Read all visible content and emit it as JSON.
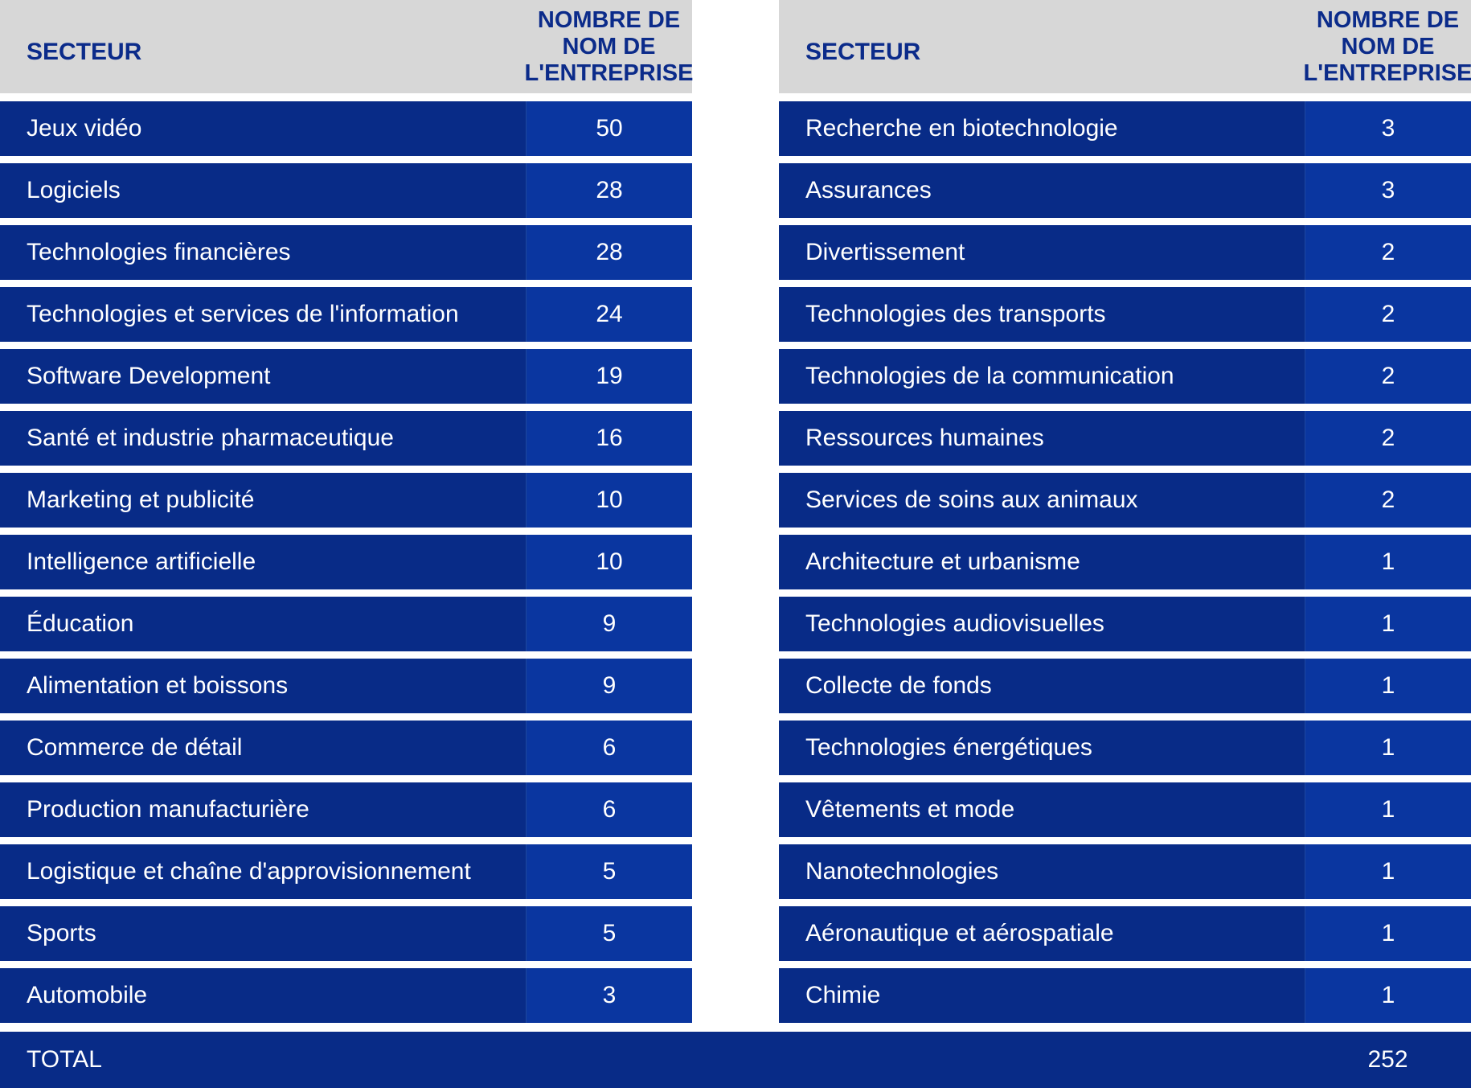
{
  "header": {
    "sector_label": "SECTEUR",
    "count_label": "NOMBRE DE\nNOM DE\nL'ENTREPRISE"
  },
  "left_table": [
    {
      "sector": "Jeux vidéo",
      "count": "50"
    },
    {
      "sector": "Logiciels",
      "count": "28"
    },
    {
      "sector": "Technologies financières",
      "count": "28"
    },
    {
      "sector": "Technologies et services de l'information",
      "count": "24"
    },
    {
      "sector": "Software Development",
      "count": "19"
    },
    {
      "sector": "Santé et industrie pharmaceutique",
      "count": "16"
    },
    {
      "sector": "Marketing et publicité",
      "count": "10"
    },
    {
      "sector": "Intelligence artificielle",
      "count": "10"
    },
    {
      "sector": "Éducation",
      "count": "9"
    },
    {
      "sector": "Alimentation et boissons",
      "count": "9"
    },
    {
      "sector": "Commerce de détail",
      "count": "6"
    },
    {
      "sector": "Production manufacturière",
      "count": "6"
    },
    {
      "sector": "Logistique et chaîne d'approvisionnement",
      "count": "5"
    },
    {
      "sector": "Sports",
      "count": "5"
    },
    {
      "sector": "Automobile",
      "count": "3"
    }
  ],
  "right_table": [
    {
      "sector": "Recherche en biotechnologie",
      "count": "3"
    },
    {
      "sector": "Assurances",
      "count": "3"
    },
    {
      "sector": "Divertissement",
      "count": "2"
    },
    {
      "sector": "Technologies des transports",
      "count": "2"
    },
    {
      "sector": "Technologies de la communication",
      "count": "2"
    },
    {
      "sector": "Ressources humaines",
      "count": "2"
    },
    {
      "sector": "Services de soins aux animaux",
      "count": "2"
    },
    {
      "sector": "Architecture et urbanisme",
      "count": "1"
    },
    {
      "sector": "Technologies audiovisuelles",
      "count": "1"
    },
    {
      "sector": "Collecte de fonds",
      "count": "1"
    },
    {
      "sector": "Technologies énergétiques",
      "count": "1"
    },
    {
      "sector": "Vêtements et mode",
      "count": "1"
    },
    {
      "sector": "Nanotechnologies",
      "count": "1"
    },
    {
      "sector": "Aéronautique et aérospatiale",
      "count": "1"
    },
    {
      "sector": "Chimie",
      "count": "1"
    }
  ],
  "total": {
    "label": "TOTAL",
    "value": "252"
  },
  "colors": {
    "header_bg": "#d7d7d7",
    "header_text": "#0b2b8a",
    "row_sector_bg": "#082b87",
    "row_count_bg": "#0a36a0",
    "row_text": "#ffffff"
  }
}
